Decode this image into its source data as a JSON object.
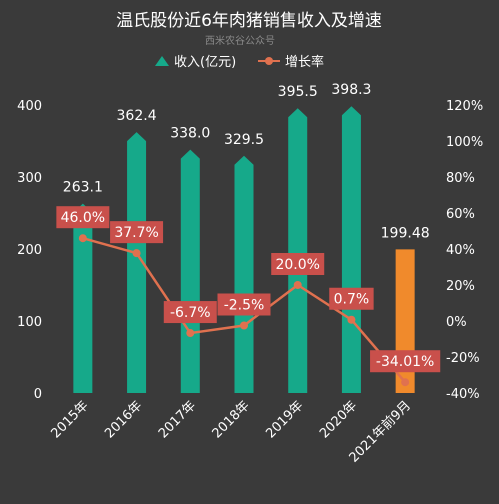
{
  "chart_data": {
    "type": "bar",
    "title": "温氏股份近6年肉猪销售收入及增速",
    "subtitle": "西米农谷公众号",
    "categories": [
      "2015年",
      "2016年",
      "2017年",
      "2018年",
      "2019年",
      "2020年",
      "2021年前9月"
    ],
    "series": [
      {
        "name": "收入(亿元)",
        "kind": "bar",
        "axis": "left",
        "values": [
          263.1,
          362.4,
          338.0,
          329.5,
          395.5,
          398.3,
          199.48
        ],
        "labels": [
          "263.1",
          "362.4",
          "338.0",
          "329.5",
          "395.5",
          "398.3",
          "199.48"
        ]
      },
      {
        "name": "增长率",
        "kind": "line",
        "axis": "right",
        "values": [
          46.0,
          37.7,
          -6.7,
          -2.5,
          20.0,
          0.7,
          -34.01
        ],
        "labels": [
          "46.0%",
          "37.7%",
          "-6.7%",
          "-2.5%",
          "20.0%",
          "0.7%",
          "-34.01%"
        ]
      }
    ],
    "y_left": {
      "ylim": [
        0,
        400
      ],
      "ticks": [
        "0",
        "100",
        "200",
        "300",
        "400"
      ],
      "tick_values": [
        0,
        100,
        200,
        300,
        400
      ]
    },
    "y_right": {
      "ylim": [
        -40,
        120
      ],
      "ticks": [
        "-40%",
        "-20%",
        "0%",
        "20%",
        "40%",
        "60%",
        "80%",
        "100%",
        "120%"
      ],
      "tick_values": [
        -40,
        -20,
        0,
        20,
        40,
        60,
        80,
        100,
        120
      ]
    },
    "grid": false,
    "legend_position": "top-center",
    "colors": {
      "background": "#3a3a3a",
      "bar": "#16a98a",
      "bar_highlight": "#f08a2c",
      "line": "#e0714f",
      "label_box": "#c9504b"
    }
  }
}
